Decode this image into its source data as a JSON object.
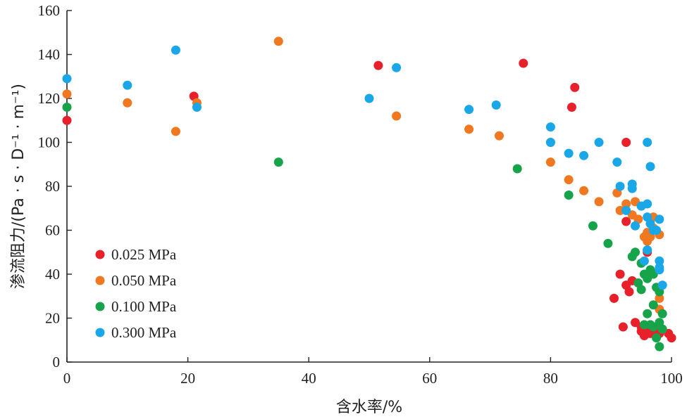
{
  "chart_data": {
    "type": "scatter",
    "xlabel": "含水率/%",
    "ylabel": "渗流阻力/(Pa · s · D⁻¹ · m⁻¹)",
    "xlim": [
      0,
      100
    ],
    "ylim": [
      0,
      160
    ],
    "x_ticks": [
      0,
      20,
      40,
      60,
      80,
      100
    ],
    "y_ticks": [
      0,
      20,
      40,
      60,
      80,
      100,
      120,
      140,
      160
    ],
    "grid": false,
    "legend_position": "bottom-left",
    "series": [
      {
        "name": "0.025 MPa",
        "color": "#e8202a",
        "points": [
          [
            0,
            110
          ],
          [
            21,
            121
          ],
          [
            51.5,
            135
          ],
          [
            75.5,
            136
          ],
          [
            83.5,
            116
          ],
          [
            84,
            125
          ],
          [
            90.5,
            29
          ],
          [
            91.5,
            40
          ],
          [
            92,
            16
          ],
          [
            92.5,
            100
          ],
          [
            92.5,
            64
          ],
          [
            92.5,
            35
          ],
          [
            93,
            32
          ],
          [
            93.5,
            37
          ],
          [
            94,
            18
          ],
          [
            95,
            16
          ],
          [
            95,
            14
          ],
          [
            95.5,
            13
          ],
          [
            95.5,
            12
          ],
          [
            96,
            50
          ],
          [
            96,
            14
          ],
          [
            96.5,
            13
          ],
          [
            97,
            15
          ],
          [
            97.5,
            14
          ],
          [
            98,
            13
          ],
          [
            99.5,
            13
          ],
          [
            100,
            11
          ]
        ]
      },
      {
        "name": "0.050 MPa",
        "color": "#f07820",
        "points": [
          [
            0,
            122
          ],
          [
            10,
            118
          ],
          [
            18,
            105
          ],
          [
            21.5,
            118
          ],
          [
            35,
            146
          ],
          [
            54.5,
            112
          ],
          [
            66.5,
            106
          ],
          [
            71.5,
            103
          ],
          [
            80,
            91
          ],
          [
            80,
            100
          ],
          [
            83,
            83
          ],
          [
            85.5,
            78
          ],
          [
            88,
            73
          ],
          [
            91,
            77
          ],
          [
            91.5,
            69
          ],
          [
            92.5,
            72
          ],
          [
            93.5,
            67
          ],
          [
            94,
            73
          ],
          [
            94.5,
            65
          ],
          [
            95,
            71
          ],
          [
            95.5,
            57
          ],
          [
            96,
            55
          ],
          [
            96,
            59
          ],
          [
            96.5,
            57
          ],
          [
            97,
            61
          ],
          [
            97,
            66
          ],
          [
            98,
            58
          ],
          [
            98,
            29
          ],
          [
            98,
            24
          ],
          [
            98.5,
            15
          ]
        ]
      },
      {
        "name": "0.100 MPa",
        "color": "#16a34a",
        "points": [
          [
            0,
            116
          ],
          [
            35,
            91
          ],
          [
            74.5,
            88
          ],
          [
            83,
            76
          ],
          [
            87,
            62
          ],
          [
            89.5,
            54
          ],
          [
            93.5,
            48
          ],
          [
            94,
            50
          ],
          [
            94.5,
            36
          ],
          [
            95,
            45
          ],
          [
            95,
            33
          ],
          [
            95.5,
            40
          ],
          [
            95.5,
            17
          ],
          [
            96,
            22
          ],
          [
            96,
            51
          ],
          [
            96,
            38
          ],
          [
            96.5,
            42
          ],
          [
            96.5,
            17
          ],
          [
            97,
            40
          ],
          [
            97,
            26
          ],
          [
            97,
            16
          ],
          [
            97.5,
            11
          ],
          [
            97.5,
            34
          ],
          [
            98,
            32
          ],
          [
            98,
            18
          ],
          [
            98,
            7
          ],
          [
            98.5,
            22
          ],
          [
            98.5,
            15
          ]
        ]
      },
      {
        "name": "0.300 MPa",
        "color": "#1aa7e8",
        "points": [
          [
            0,
            129
          ],
          [
            10,
            126
          ],
          [
            18,
            142
          ],
          [
            21.5,
            116
          ],
          [
            50,
            120
          ],
          [
            54.5,
            134
          ],
          [
            66.5,
            115
          ],
          [
            71,
            117
          ],
          [
            80,
            107
          ],
          [
            80,
            100
          ],
          [
            83,
            95
          ],
          [
            85.5,
            94
          ],
          [
            88,
            100
          ],
          [
            91,
            91
          ],
          [
            91.5,
            80
          ],
          [
            92.5,
            69
          ],
          [
            93.5,
            79
          ],
          [
            93.5,
            81
          ],
          [
            94,
            62
          ],
          [
            95,
            71
          ],
          [
            96,
            72
          ],
          [
            96,
            100
          ],
          [
            96,
            66
          ],
          [
            96.5,
            89
          ],
          [
            96.5,
            63
          ],
          [
            97,
            60
          ],
          [
            97.5,
            60
          ],
          [
            98,
            65
          ],
          [
            98,
            46
          ],
          [
            98,
            42
          ],
          [
            98,
            43
          ],
          [
            98.5,
            35
          ],
          [
            96,
            51
          ],
          [
            95.5,
            46
          ]
        ]
      }
    ]
  }
}
